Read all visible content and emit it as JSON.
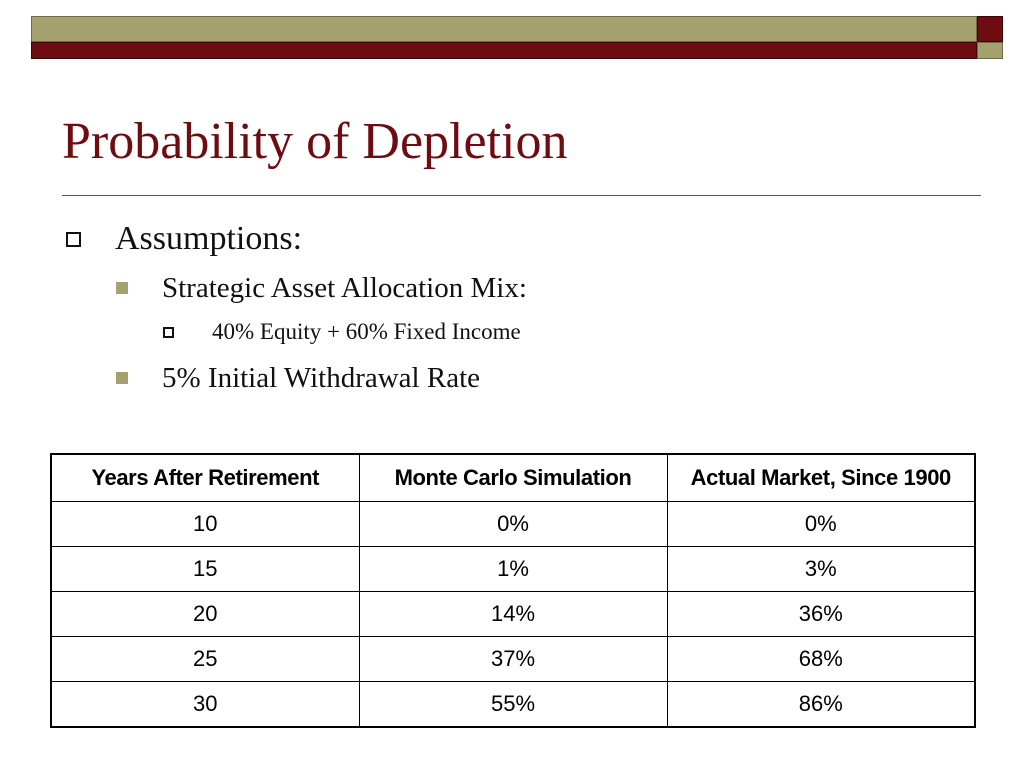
{
  "slide": {
    "title": "Probability of Depletion",
    "bullets": {
      "assumptions": "Assumptions:",
      "allocation": "Strategic Asset Allocation Mix:",
      "mix": "40% Equity + 60% Fixed Income",
      "withdrawal": "5% Initial Withdrawal Rate"
    }
  },
  "table": {
    "headers": [
      "Years After Retirement",
      "Monte Carlo Simulation",
      "Actual Market, Since 1900"
    ],
    "rows": [
      [
        "10",
        "0%",
        "0%"
      ],
      [
        "15",
        "1%",
        "3%"
      ],
      [
        "20",
        "14%",
        "36%"
      ],
      [
        "25",
        "37%",
        "68%"
      ],
      [
        "30",
        "55%",
        "86%"
      ]
    ]
  },
  "colors": {
    "title": "#6e0c12",
    "maroon_bar": "#6e0c12",
    "olive_bar": "#a5a16f",
    "bullet_square": "#a5a16f"
  }
}
